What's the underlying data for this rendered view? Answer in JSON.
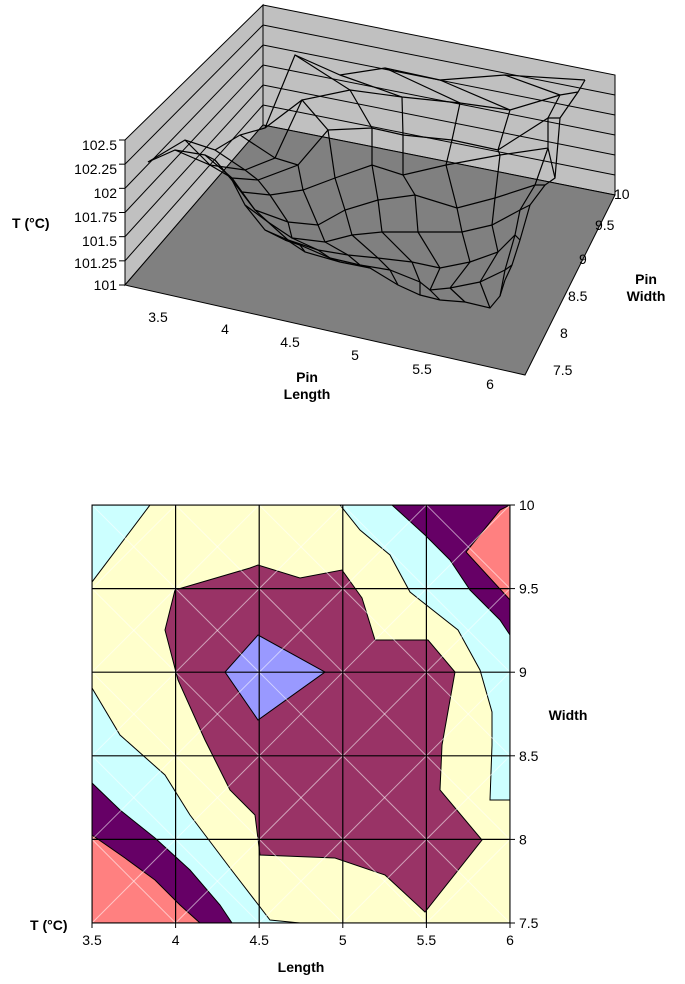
{
  "chart_data": [
    {
      "type": "surface",
      "z_label": "T (°C)",
      "x_label_line1": "Pin",
      "x_label_line2": "Length",
      "y_label_line1": "Pin",
      "y_label_line2": "Width",
      "z_ticks": [
        "101",
        "101.25",
        "101.5",
        "101.75",
        "102",
        "102.25",
        "102.5"
      ],
      "x_ticks": [
        "3.5",
        "4",
        "4.5",
        "5",
        "5.5",
        "6"
      ],
      "y_ticks": [
        "7.5",
        "8",
        "8.5",
        "9",
        "9.5",
        "10"
      ],
      "zlim": [
        101,
        102.5
      ],
      "grid": true,
      "floor_color": "#808080",
      "wall_color": "#c0c0c0"
    },
    {
      "type": "contour",
      "corner_label": "T (°C)",
      "xlabel": "Length",
      "ylabel": "Width",
      "xlim": [
        3.5,
        6
      ],
      "ylim": [
        7.5,
        10
      ],
      "x_ticks": [
        "3.5",
        "4",
        "4.5",
        "5",
        "5.5",
        "6"
      ],
      "y_ticks": [
        "7.5",
        "8",
        "8.5",
        "9",
        "9.5",
        "10"
      ],
      "grid": true,
      "band_colors": {
        "lowest": "#9999ff",
        "low": "#993366",
        "mid": "#ffffcc",
        "high": "#ccffff",
        "higher": "#660066",
        "highest": "#ff8080"
      }
    }
  ]
}
